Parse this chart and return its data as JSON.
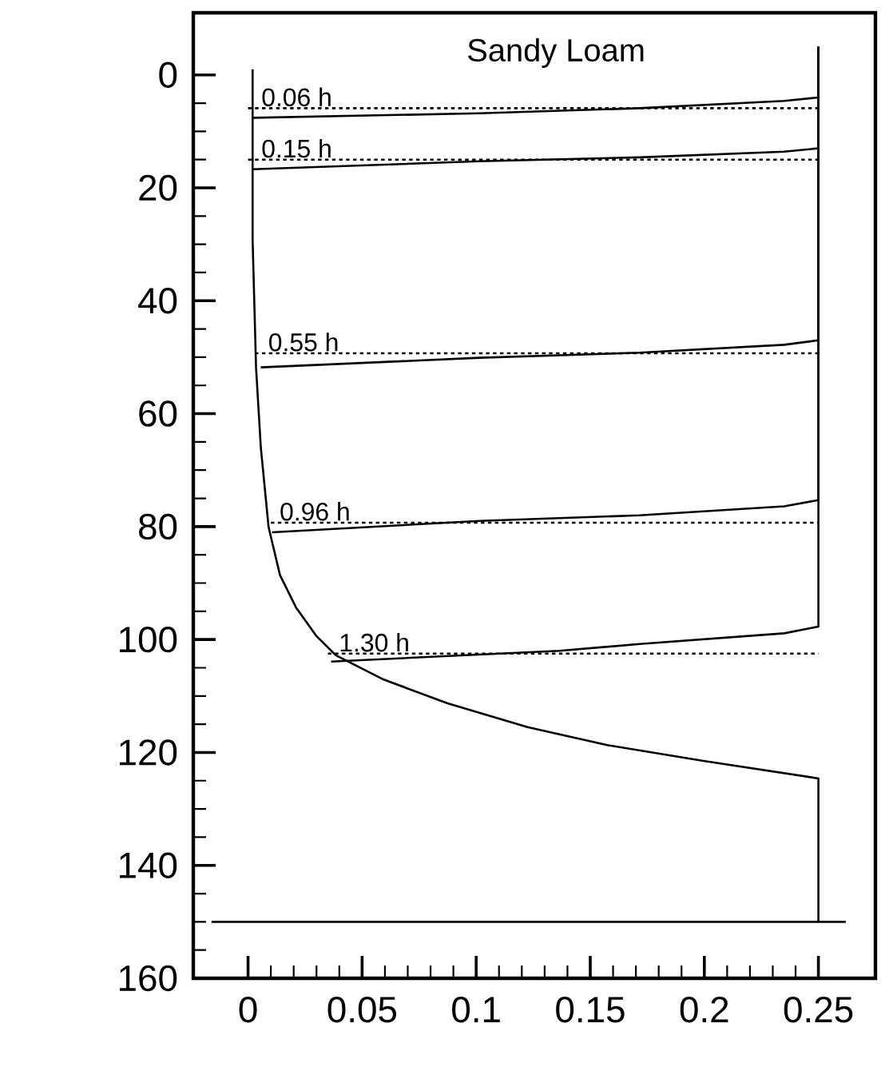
{
  "chart_data": {
    "type": "line",
    "title": "Sandy Loam",
    "xlim": [
      -0.024,
      0.275
    ],
    "ylim": [
      160,
      -11
    ],
    "xticks": [
      0,
      0.05,
      0.1,
      0.15,
      0.2,
      0.25
    ],
    "yticks": [
      0,
      20,
      40,
      60,
      80,
      100,
      120,
      140,
      160
    ],
    "series": [
      {
        "color": "#000000",
        "line_style": "solid",
        "x": [
          0.002,
          0.002,
          0.0035,
          0.0056,
          0.009,
          0.014,
          0.021,
          0.03,
          0.0385,
          0.0595,
          0.0875,
          0.1225,
          0.1575,
          0.1996,
          0.25,
          0.25
        ],
        "values": [
          -1,
          29.2,
          51.8,
          66.0,
          80.1,
          88.6,
          94.3,
          99.4,
          102.8,
          107.1,
          111.3,
          115.5,
          118.7,
          121.5,
          124.6,
          150
        ]
      },
      {
        "color": "#000000",
        "line_style": "solid",
        "x": [
          0.25,
          0.25,
          0.235,
          0.1716,
          0.1015,
          0.002
        ],
        "values": [
          -5,
          4.0,
          4.6,
          5.9,
          6.8,
          7.6
        ]
      },
      {
        "color": "#000000",
        "line_style": "solid",
        "x": [
          0.25,
          0.25,
          0.235,
          0.1716,
          0.1015,
          0.002
        ],
        "values": [
          -5,
          13.0,
          13.6,
          14.6,
          15.3,
          16.7
        ]
      },
      {
        "color": "#000000",
        "line_style": "solid",
        "x": [
          0.25,
          0.25,
          0.235,
          0.1716,
          0.1015,
          0.0056
        ],
        "values": [
          -5,
          47.0,
          47.8,
          49.2,
          50.1,
          51.8
        ]
      },
      {
        "color": "#000000",
        "line_style": "solid",
        "x": [
          0.25,
          0.25,
          0.235,
          0.1716,
          0.1015,
          0.0105
        ],
        "values": [
          -5,
          75.3,
          76.4,
          78.0,
          79.0,
          81.0
        ]
      },
      {
        "color": "#000000",
        "line_style": "solid",
        "x": [
          0.25,
          0.25,
          0.235,
          0.1716,
          0.1366,
          0.0364
        ],
        "values": [
          -5,
          97.7,
          98.9,
          100.8,
          102.0,
          103.9
        ]
      },
      {
        "color": "#000000",
        "line_style": "dotted",
        "x": [
          0.0,
          0.25
        ],
        "values": [
          5.9,
          5.9
        ]
      },
      {
        "color": "#000000",
        "line_style": "dotted",
        "x": [
          0.0,
          0.25
        ],
        "values": [
          15.0,
          15.0
        ]
      },
      {
        "color": "#000000",
        "line_style": "dotted",
        "x": [
          0.003,
          0.25
        ],
        "values": [
          49.3,
          49.3
        ]
      },
      {
        "color": "#000000",
        "line_style": "dotted",
        "x": [
          0.01,
          0.25
        ],
        "values": [
          79.3,
          79.3
        ]
      },
      {
        "color": "#000000",
        "line_style": "dotted",
        "x": [
          0.035,
          0.25
        ],
        "values": [
          102.5,
          102.5
        ]
      }
    ],
    "annotations": [
      {
        "text": "0.06 h",
        "x": 0.005,
        "y": 5.9
      },
      {
        "text": "0.15 h",
        "x": 0.005,
        "y": 15.0
      },
      {
        "text": "0.55 h",
        "x": 0.008,
        "y": 49.3
      },
      {
        "text": "0.96 h",
        "x": 0.013,
        "y": 79.3
      },
      {
        "text": "1.30 h",
        "x": 0.039,
        "y": 102.5
      }
    ],
    "ref_lines": [
      {
        "axis": "y",
        "value": 150,
        "color": "#000000",
        "line_style": "solid"
      }
    ]
  }
}
